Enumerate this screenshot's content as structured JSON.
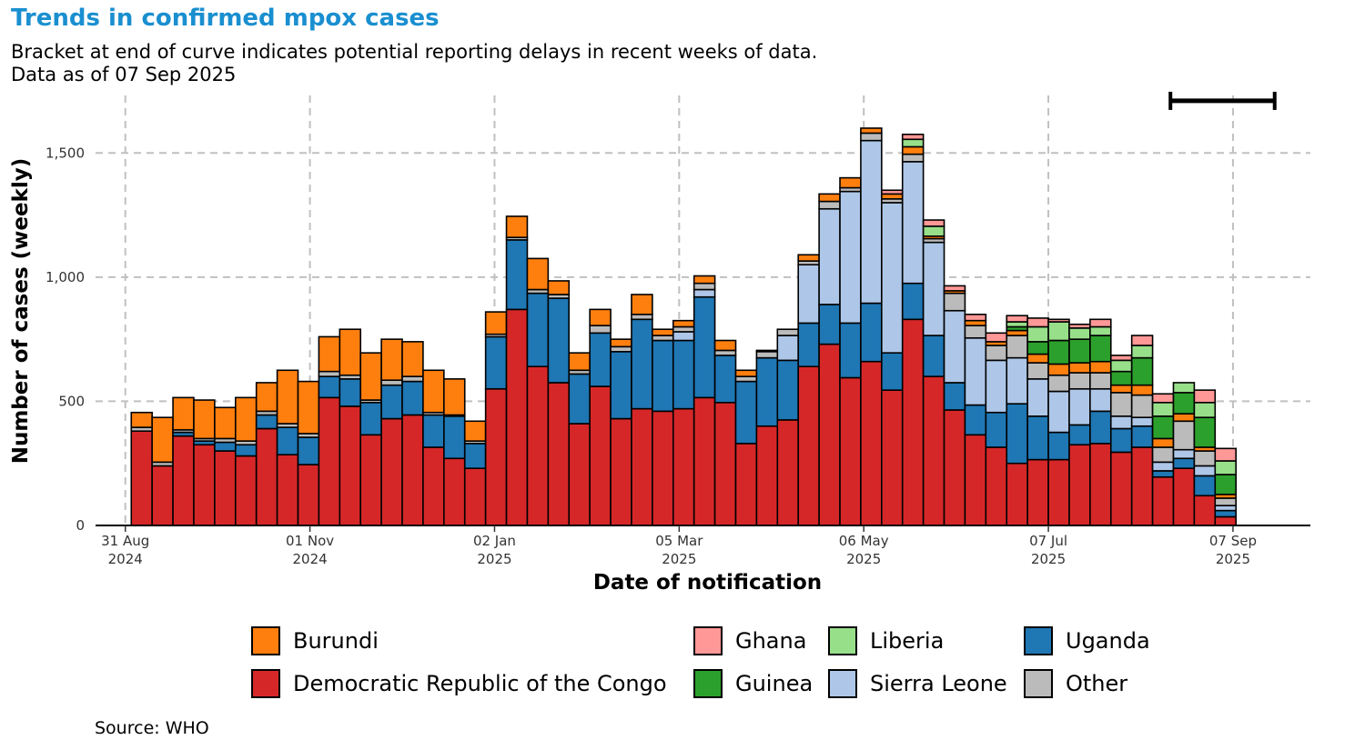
{
  "title": "Trends in confirmed mpox cases",
  "subtitle": {
    "line1": "Bracket at end of curve indicates potential reporting delays in recent weeks of data.",
    "line2": "Data as of 07 Sep 2025"
  },
  "source": "Source: WHO",
  "colors": {
    "title": "#1a8fd0",
    "Burundi": "#ff7f0e",
    "Democratic Republic of the Congo": "#d62728",
    "Ghana": "#ff9896",
    "Guinea": "#2ca02c",
    "Liberia": "#98df8a",
    "Sierra Leone": "#aec7e8",
    "Uganda": "#1f77b4",
    "Other": "#bbbbbb"
  },
  "chart_data": {
    "type": "bar",
    "stacked": true,
    "xlabel": "Date of notification",
    "ylabel": "Number of cases (weekly)",
    "ylim": [
      0,
      1750
    ],
    "y_ticks": [
      0,
      500,
      1000,
      1500
    ],
    "y_tick_labels": [
      "0",
      "500",
      "1,000",
      "1,500"
    ],
    "x_ticks": [
      {
        "date": "2024-08-31",
        "label1": "31 Aug",
        "label2": "2024"
      },
      {
        "date": "2024-11-01",
        "label1": "01 Nov",
        "label2": "2024"
      },
      {
        "date": "2025-01-02",
        "label1": "02 Jan",
        "label2": "2025"
      },
      {
        "date": "2025-03-05",
        "label1": "05 Mar",
        "label2": "2025"
      },
      {
        "date": "2025-05-06",
        "label1": "06 May",
        "label2": "2025"
      },
      {
        "date": "2025-07-07",
        "label1": "07 Jul",
        "label2": "2025"
      },
      {
        "date": "2025-09-07",
        "label1": "07 Sep",
        "label2": "2025"
      }
    ],
    "x_range": [
      "2024-08-21",
      "2025-10-03"
    ],
    "bracket": {
      "start": "2025-08-17",
      "end": "2025-09-21",
      "y": 1710
    },
    "grid": true,
    "legend_position": "bottom",
    "week_start_dates": [
      "2024-09-02",
      "2024-09-09",
      "2024-09-16",
      "2024-09-23",
      "2024-09-30",
      "2024-10-07",
      "2024-10-14",
      "2024-10-21",
      "2024-10-28",
      "2024-11-04",
      "2024-11-11",
      "2024-11-18",
      "2024-11-25",
      "2024-12-02",
      "2024-12-09",
      "2024-12-16",
      "2024-12-23",
      "2024-12-30",
      "2025-01-06",
      "2025-01-13",
      "2025-01-20",
      "2025-01-27",
      "2025-02-03",
      "2025-02-10",
      "2025-02-17",
      "2025-02-24",
      "2025-03-03",
      "2025-03-10",
      "2025-03-17",
      "2025-03-24",
      "2025-03-31",
      "2025-04-07",
      "2025-04-14",
      "2025-04-21",
      "2025-04-28",
      "2025-05-05",
      "2025-05-12",
      "2025-05-19",
      "2025-05-26",
      "2025-06-02",
      "2025-06-09",
      "2025-06-16",
      "2025-06-23",
      "2025-06-30",
      "2025-07-07",
      "2025-07-14",
      "2025-07-21",
      "2025-07-28",
      "2025-08-04",
      "2025-08-11",
      "2025-08-18",
      "2025-08-25",
      "2025-09-01"
    ],
    "series": [
      {
        "name": "Democratic Republic of the Congo",
        "values": [
          380,
          240,
          360,
          325,
          300,
          280,
          390,
          285,
          245,
          515,
          480,
          365,
          430,
          445,
          315,
          270,
          230,
          550,
          870,
          640,
          575,
          410,
          560,
          430,
          470,
          460,
          470,
          515,
          495,
          330,
          400,
          425,
          640,
          730,
          595,
          660,
          545,
          830,
          600,
          465,
          365,
          315,
          250,
          265,
          265,
          325,
          330,
          295,
          315,
          195,
          230,
          120,
          35
        ]
      },
      {
        "name": "Uganda",
        "values": [
          0,
          0,
          15,
          15,
          35,
          45,
          55,
          110,
          110,
          85,
          110,
          130,
          135,
          135,
          130,
          170,
          100,
          210,
          280,
          295,
          340,
          200,
          215,
          270,
          360,
          285,
          275,
          405,
          190,
          250,
          275,
          240,
          175,
          160,
          220,
          235,
          150,
          145,
          165,
          110,
          120,
          140,
          240,
          175,
          110,
          80,
          130,
          95,
          85,
          25,
          40,
          80,
          25
        ]
      },
      {
        "name": "Sierra Leone",
        "values": [
          0,
          0,
          0,
          0,
          0,
          0,
          0,
          0,
          0,
          0,
          0,
          0,
          0,
          0,
          0,
          0,
          0,
          0,
          0,
          0,
          0,
          0,
          0,
          0,
          0,
          0,
          35,
          30,
          0,
          0,
          0,
          100,
          235,
          385,
          530,
          655,
          605,
          490,
          375,
          290,
          270,
          210,
          185,
          150,
          165,
          145,
          90,
          50,
          35,
          35,
          35,
          40,
          20
        ]
      },
      {
        "name": "Other",
        "values": [
          15,
          15,
          10,
          10,
          15,
          15,
          15,
          15,
          15,
          20,
          15,
          10,
          20,
          20,
          10,
          5,
          10,
          10,
          10,
          15,
          15,
          15,
          30,
          20,
          20,
          20,
          20,
          25,
          20,
          20,
          25,
          25,
          15,
          30,
          15,
          30,
          15,
          30,
          15,
          70,
          50,
          60,
          90,
          65,
          65,
          65,
          65,
          95,
          90,
          60,
          115,
          60,
          30
        ]
      },
      {
        "name": "Burundi",
        "values": [
          60,
          180,
          130,
          155,
          125,
          175,
          115,
          215,
          210,
          140,
          185,
          190,
          165,
          140,
          170,
          145,
          80,
          90,
          85,
          125,
          55,
          70,
          65,
          30,
          80,
          25,
          25,
          30,
          40,
          25,
          5,
          0,
          25,
          30,
          40,
          20,
          20,
          30,
          10,
          10,
          20,
          15,
          20,
          35,
          45,
          40,
          45,
          30,
          40,
          35,
          30,
          15,
          15
        ]
      },
      {
        "name": "Guinea",
        "values": [
          0,
          0,
          0,
          0,
          0,
          0,
          0,
          0,
          0,
          0,
          0,
          0,
          0,
          0,
          0,
          0,
          0,
          0,
          0,
          0,
          0,
          0,
          0,
          0,
          0,
          0,
          0,
          0,
          0,
          0,
          0,
          0,
          0,
          0,
          0,
          0,
          0,
          0,
          0,
          0,
          0,
          0,
          15,
          50,
          95,
          95,
          105,
          55,
          110,
          90,
          85,
          120,
          80
        ]
      },
      {
        "name": "Liberia",
        "values": [
          0,
          0,
          0,
          0,
          0,
          0,
          0,
          0,
          0,
          0,
          0,
          0,
          0,
          0,
          0,
          0,
          0,
          0,
          0,
          0,
          0,
          0,
          0,
          0,
          0,
          0,
          0,
          0,
          0,
          0,
          0,
          0,
          0,
          0,
          0,
          0,
          0,
          30,
          40,
          0,
          0,
          0,
          20,
          60,
          75,
          45,
          35,
          45,
          50,
          55,
          40,
          60,
          55
        ]
      },
      {
        "name": "Ghana",
        "values": [
          0,
          0,
          0,
          0,
          0,
          0,
          0,
          0,
          0,
          0,
          0,
          0,
          0,
          0,
          0,
          0,
          0,
          0,
          0,
          0,
          0,
          0,
          0,
          0,
          0,
          0,
          0,
          0,
          0,
          0,
          0,
          0,
          0,
          0,
          0,
          0,
          15,
          20,
          25,
          20,
          25,
          35,
          25,
          35,
          10,
          15,
          30,
          20,
          40,
          35,
          0,
          50,
          50
        ]
      }
    ]
  },
  "legend": {
    "items": [
      {
        "label": "Burundi",
        "key": "Burundi"
      },
      {
        "label": "Democratic Republic of the Congo",
        "key": "Democratic Republic of the Congo"
      },
      {
        "label": "Ghana",
        "key": "Ghana"
      },
      {
        "label": "Guinea",
        "key": "Guinea"
      },
      {
        "label": "Liberia",
        "key": "Liberia"
      },
      {
        "label": "Sierra Leone",
        "key": "Sierra Leone"
      },
      {
        "label": "Uganda",
        "key": "Uganda"
      },
      {
        "label": "Other",
        "key": "Other"
      }
    ]
  }
}
